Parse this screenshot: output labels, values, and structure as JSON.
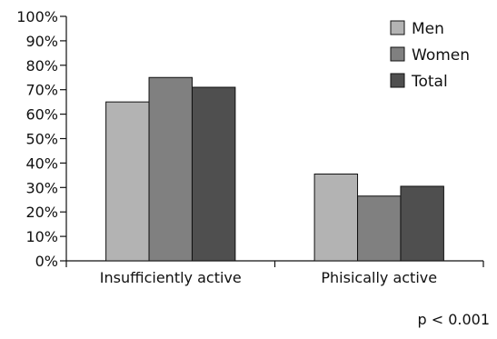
{
  "chart_data": {
    "type": "bar",
    "categories": [
      "Insufficiently active",
      "Phisically active"
    ],
    "series": [
      {
        "name": "Men",
        "values": [
          65,
          35.5
        ],
        "color": "#b3b3b3"
      },
      {
        "name": "Women",
        "values": [
          75,
          26.5
        ],
        "color": "#808080"
      },
      {
        "name": "Total",
        "values": [
          71,
          30.5
        ],
        "color": "#4f4f4f"
      }
    ],
    "ylim": [
      0,
      100
    ],
    "yticks": [
      "0%",
      "10%",
      "20%",
      "30%",
      "40%",
      "50%",
      "60%",
      "70%",
      "80%",
      "90%",
      "100%"
    ],
    "legend_position": "top-right",
    "grid": false,
    "annotation": "p < 0.001"
  }
}
